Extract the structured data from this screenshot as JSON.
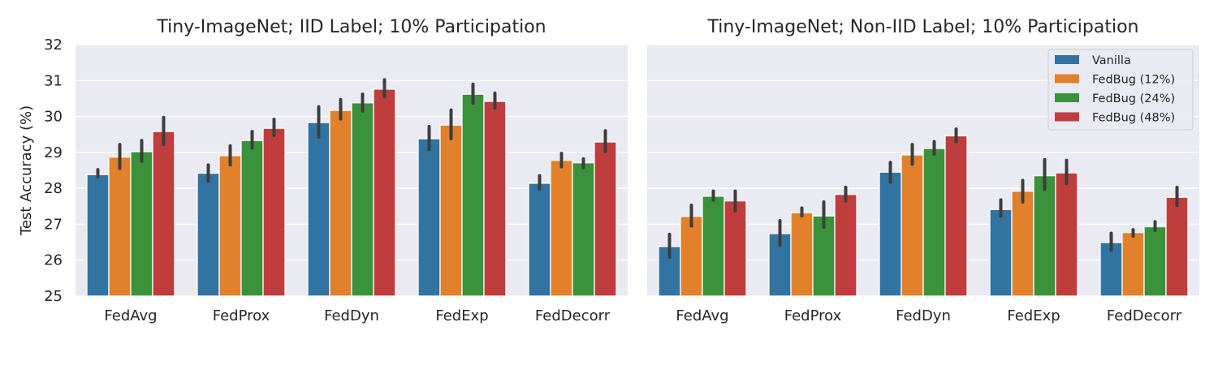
{
  "chart_data": {
    "type": "bar",
    "ylabel": "Test Accuracy (%)",
    "ylim": [
      25,
      32
    ],
    "yticks": [
      25,
      26,
      27,
      28,
      29,
      30,
      31,
      32
    ],
    "grid": true,
    "legend_placement": "top-right",
    "series": [
      {
        "name": "Vanilla",
        "color": "#3274a1"
      },
      {
        "name": "FedBug (12%)",
        "color": "#e1812c"
      },
      {
        "name": "FedBug (24%)",
        "color": "#3a923a"
      },
      {
        "name": "FedBug (48%)",
        "color": "#c03d3e"
      }
    ],
    "categories": [
      "FedAvg",
      "FedProx",
      "FedDyn",
      "FedExp",
      "FedDecorr"
    ],
    "panels": [
      {
        "title": "Tiny-ImageNet; IID Label; 10% Participation",
        "values": [
          [
            28.38,
            28.87,
            29.02,
            29.58
          ],
          [
            28.42,
            28.91,
            29.33,
            29.67
          ],
          [
            29.83,
            30.17,
            30.38,
            30.76
          ],
          [
            29.38,
            29.76,
            30.62,
            30.42
          ],
          [
            28.14,
            28.78,
            28.71,
            29.29
          ]
        ],
        "errors": [
          [
            [
              28.32,
              28.52
            ],
            [
              28.55,
              29.22
            ],
            [
              28.75,
              29.33
            ],
            [
              29.22,
              29.97
            ]
          ],
          [
            [
              28.2,
              28.65
            ],
            [
              28.65,
              29.18
            ],
            [
              29.12,
              29.58
            ],
            [
              29.47,
              29.92
            ]
          ],
          [
            [
              29.43,
              30.27
            ],
            [
              29.93,
              30.47
            ],
            [
              30.15,
              30.62
            ],
            [
              30.55,
              31.02
            ]
          ],
          [
            [
              29.08,
              29.72
            ],
            [
              29.38,
              30.18
            ],
            [
              30.37,
              30.9
            ],
            [
              30.23,
              30.65
            ]
          ],
          [
            [
              27.98,
              28.35
            ],
            [
              28.6,
              28.97
            ],
            [
              28.57,
              28.82
            ],
            [
              29.02,
              29.6
            ]
          ]
        ]
      },
      {
        "title": "Tiny-ImageNet; Non-IID Label; 10% Participation",
        "values": [
          [
            26.38,
            27.22,
            27.78,
            27.65
          ],
          [
            26.74,
            27.32,
            27.23,
            27.83
          ],
          [
            28.45,
            28.93,
            29.11,
            29.46
          ],
          [
            27.41,
            27.92,
            28.35,
            28.43
          ],
          [
            26.49,
            26.77,
            26.93,
            27.75
          ]
        ],
        "errors": [
          [
            [
              26.08,
              26.72
            ],
            [
              26.95,
              27.53
            ],
            [
              27.67,
              27.92
            ],
            [
              27.37,
              27.92
            ]
          ],
          [
            [
              26.42,
              27.1
            ],
            [
              27.23,
              27.45
            ],
            [
              26.92,
              27.62
            ],
            [
              27.65,
              28.03
            ]
          ],
          [
            [
              28.17,
              28.72
            ],
            [
              28.67,
              29.22
            ],
            [
              28.95,
              29.3
            ],
            [
              29.3,
              29.65
            ]
          ],
          [
            [
              27.22,
              27.68
            ],
            [
              27.62,
              28.22
            ],
            [
              27.97,
              28.8
            ],
            [
              28.13,
              28.78
            ]
          ],
          [
            [
              26.27,
              26.75
            ],
            [
              26.67,
              26.85
            ],
            [
              26.83,
              27.07
            ],
            [
              27.52,
              28.03
            ]
          ]
        ]
      }
    ]
  }
}
